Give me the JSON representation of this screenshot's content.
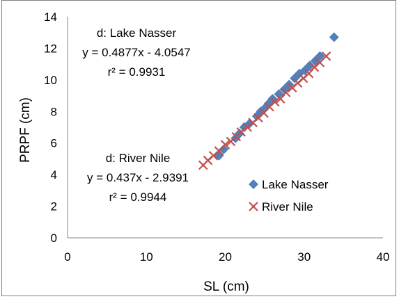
{
  "chart_data": {
    "type": "scatter",
    "title": "",
    "xlabel": "SL (cm)",
    "ylabel": "PRPF (cm)",
    "xlim": [
      0,
      40
    ],
    "ylim": [
      0,
      14
    ],
    "xticks": [
      "0",
      "10",
      "20",
      "30",
      "40"
    ],
    "yticks": [
      "0",
      "2",
      "4",
      "6",
      "8",
      "10",
      "12",
      "14"
    ],
    "grid": false,
    "legend_position": "bottom-right",
    "series": [
      {
        "name": "Lake Nasser",
        "marker": "diamond",
        "color": "#4f81bd",
        "x": [
          19.2,
          19.8,
          21.3,
          21.8,
          22.4,
          23.0,
          24.0,
          24.5,
          25.0,
          25.5,
          26.0,
          26.8,
          27.5,
          28.1,
          28.8,
          29.4,
          30.1,
          30.7,
          31.4,
          32.0,
          33.8
        ],
        "y": [
          5.2,
          5.6,
          6.3,
          6.6,
          7.0,
          7.2,
          7.7,
          8.0,
          8.2,
          8.5,
          8.8,
          9.1,
          9.4,
          9.7,
          10.1,
          10.4,
          10.6,
          10.9,
          11.2,
          11.5,
          12.7
        ]
      },
      {
        "name": "River Nile",
        "marker": "x",
        "color": "#c0504d",
        "x": [
          17.2,
          17.8,
          18.5,
          19.2,
          20.0,
          20.7,
          21.4,
          22.0,
          22.8,
          23.5,
          24.2,
          24.9,
          25.6,
          26.3,
          27.0,
          27.7,
          28.5,
          29.2,
          29.9,
          30.6,
          31.3,
          32.0,
          32.8
        ],
        "y": [
          4.6,
          4.9,
          5.2,
          5.5,
          5.9,
          6.1,
          6.4,
          6.7,
          7.0,
          7.3,
          7.6,
          7.9,
          8.3,
          8.6,
          8.8,
          9.2,
          9.5,
          9.8,
          10.1,
          10.4,
          10.8,
          11.1,
          11.5
        ]
      }
    ],
    "trendlines": [
      {
        "series": "Lake Nasser",
        "slope": 0.4877,
        "intercept": -4.0547
      },
      {
        "series": "River Nile",
        "slope": 0.437,
        "intercept": -2.9391
      }
    ],
    "annotations": {
      "nasser": {
        "line1": "d: Lake Nasser",
        "line2": "y = 0.4877x - 4.0547",
        "line3": "r² = 0.9931"
      },
      "nile": {
        "line1": "d: River Nile",
        "line2": "y = 0.437x - 2.9391",
        "line3": "r² = 0.9944"
      }
    }
  }
}
